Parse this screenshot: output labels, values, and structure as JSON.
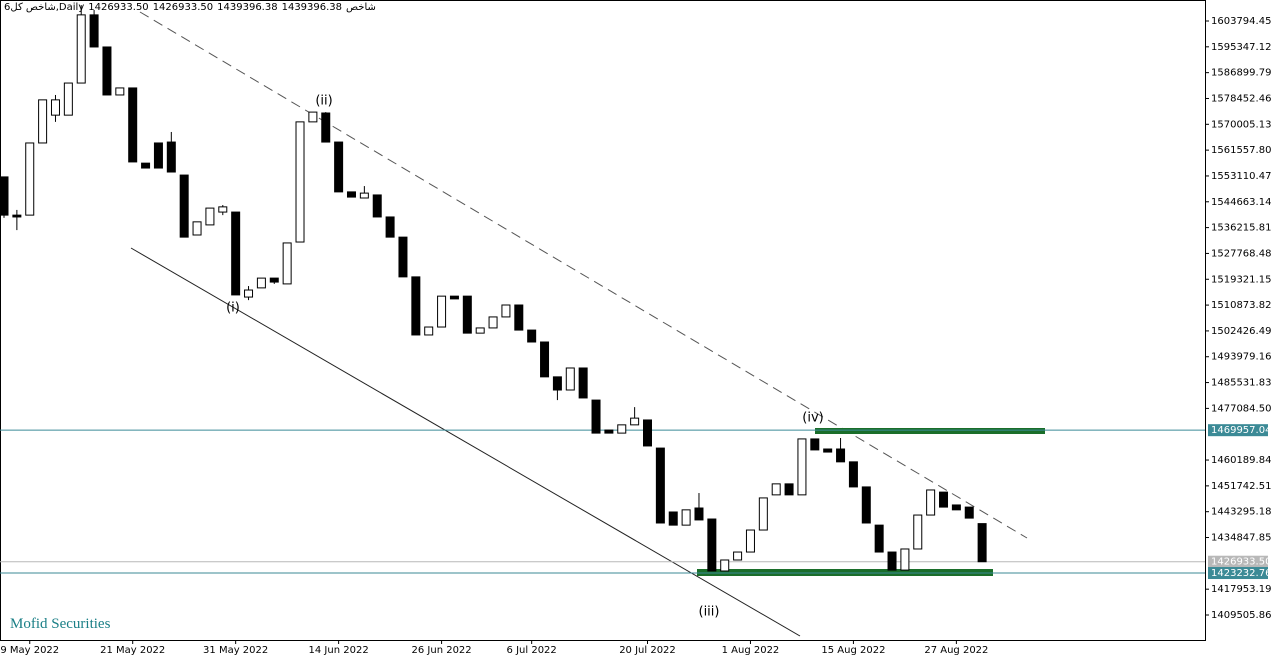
{
  "header": {
    "symbol": "شاخص کل6,Daily",
    "ohlc": [
      "1426933.50",
      "1426933.50",
      "1439396.38",
      "1439396.38"
    ],
    "indicator": "شاخص"
  },
  "brand": "Mofid Securities",
  "chart_data": {
    "type": "candlestick",
    "categories": [
      null,
      null,
      "9 May 2022",
      null,
      null,
      null,
      null,
      null,
      null,
      null,
      "21 May 2022",
      null,
      null,
      null,
      null,
      null,
      null,
      null,
      "31 May 2022",
      null,
      null,
      null,
      null,
      null,
      null,
      null,
      "14 Jun 2022",
      null,
      null,
      null,
      null,
      null,
      null,
      null,
      "26 Jun 2022",
      null,
      null,
      null,
      null,
      null,
      null,
      "6 Jul 2022",
      null,
      null,
      null,
      null,
      null,
      null,
      null,
      null,
      "20 Jul 2022",
      null,
      null,
      null,
      null,
      null,
      null,
      null,
      "1 Aug 2022",
      null,
      null,
      null,
      null,
      null,
      null,
      null,
      "15 Aug 2022",
      null,
      null,
      null,
      null,
      null,
      null,
      null,
      "27 Aug 2022",
      null,
      null
    ],
    "open": [
      1552800,
      1540300,
      1540300,
      1563900,
      1573000,
      1573000,
      1583500,
      1605800,
      1595300,
      1579600,
      1581900,
      1557300,
      1563900,
      1564200,
      1553400,
      1533800,
      1537100,
      1541300,
      1541300,
      1513500,
      1516500,
      1519700,
      1517800,
      1531500,
      1570800,
      1573700,
      1564200,
      1547900,
      1545900,
      1546900,
      1539700,
      1533100,
      1520100,
      1501100,
      1503700,
      1513800,
      1513800,
      1501700,
      1503400,
      1507000,
      1510900,
      1502700,
      1498800,
      1487400,
      1483100,
      1490300,
      1479800,
      1470000,
      1469000,
      1471700,
      1473300,
      1464100,
      1443200,
      1438900,
      1444500,
      1440900,
      1423900,
      1427500,
      1430100,
      1437300,
      1448800,
      1452400,
      1448800,
      1467100,
      1463800,
      1463800,
      1459600,
      1451400,
      1438900,
      1430100,
      1424200,
      1431100,
      1442200,
      1449700,
      1445500,
      1444800,
      1439396.38
    ],
    "high": [
      1552800,
      1542000,
      1563900,
      1578000,
      1579600,
      1583500,
      1609000,
      1607400,
      1595300,
      1581900,
      1581900,
      1557300,
      1563900,
      1567500,
      1553400,
      1538100,
      1542600,
      1543600,
      1541300,
      1517100,
      1519700,
      1519700,
      1531200,
      1570800,
      1574000,
      1574000,
      1564200,
      1547900,
      1549800,
      1546900,
      1539700,
      1533100,
      1520100,
      1503700,
      1513800,
      1513800,
      1513800,
      1503400,
      1507000,
      1510900,
      1510900,
      1502700,
      1498800,
      1487400,
      1490300,
      1490300,
      1479800,
      1470000,
      1471700,
      1477500,
      1473300,
      1464100,
      1443200,
      1443900,
      1449400,
      1440900,
      1427500,
      1430100,
      1437300,
      1447800,
      1452400,
      1452400,
      1467100,
      1467100,
      1463800,
      1467400,
      1459600,
      1451400,
      1438900,
      1430100,
      1431100,
      1442200,
      1450400,
      1449700,
      1445500,
      1444800,
      1439396.38
    ],
    "low": [
      1539400,
      1535400,
      1540300,
      1563900,
      1570800,
      1573000,
      1583500,
      1595300,
      1579600,
      1579600,
      1557700,
      1555700,
      1555700,
      1554400,
      1533100,
      1533800,
      1537100,
      1540300,
      1514200,
      1512500,
      1516500,
      1517800,
      1517800,
      1531500,
      1570800,
      1564200,
      1547900,
      1546200,
      1545900,
      1539700,
      1533100,
      1520100,
      1501100,
      1501100,
      1503700,
      1512900,
      1501700,
      1501700,
      1503400,
      1507000,
      1502700,
      1498800,
      1487400,
      1479800,
      1483100,
      1480500,
      1469000,
      1469000,
      1469000,
      1471700,
      1464800,
      1439600,
      1438900,
      1438900,
      1440600,
      1423900,
      1423900,
      1427500,
      1430100,
      1437300,
      1448800,
      1448800,
      1448800,
      1463500,
      1462800,
      1459600,
      1451400,
      1439600,
      1430100,
      1424200,
      1424200,
      1431100,
      1442200,
      1444800,
      1443900,
      1441200,
      1426933.5
    ],
    "close": [
      1540300,
      1539700,
      1563900,
      1578000,
      1578000,
      1583500,
      1605800,
      1595300,
      1579600,
      1581900,
      1557700,
      1555700,
      1555700,
      1554400,
      1533100,
      1538100,
      1542600,
      1543000,
      1514200,
      1515800,
      1519700,
      1518400,
      1531200,
      1570800,
      1574000,
      1564200,
      1547900,
      1546200,
      1547500,
      1539700,
      1533100,
      1520100,
      1501100,
      1503700,
      1513800,
      1512900,
      1501700,
      1503400,
      1507000,
      1510900,
      1502700,
      1498800,
      1487400,
      1483100,
      1490300,
      1480500,
      1469000,
      1469000,
      1471700,
      1473900,
      1464800,
      1439600,
      1438900,
      1443900,
      1440600,
      1423900,
      1427500,
      1430100,
      1437300,
      1447800,
      1452400,
      1448800,
      1467100,
      1463500,
      1462800,
      1459600,
      1451400,
      1439600,
      1430100,
      1424200,
      1431100,
      1442200,
      1450400,
      1444800,
      1443900,
      1441200,
      1426933.5
    ],
    "up_color": "#ffffff",
    "down_color": "#000000",
    "ylim": [
      1401329,
      1610663
    ],
    "yticks": [
      1603794.45,
      1595347.12,
      1586899.79,
      1578452.46,
      1570005.13,
      {
        "value": 1561557.8,
        "label": "1561557.80"
      },
      1553110.47,
      1544663.14,
      1536215.81,
      1527768.48,
      1519321.15,
      1510873.82,
      1502426.49,
      1493979.16,
      1485531.83,
      {
        "value": 1477084.5,
        "label": "1477084.50"
      },
      1460189.84,
      1451742.51,
      1443295.18,
      1434847.85,
      1417953.19,
      1409505.86
    ],
    "levels": [
      1469957.04,
      {
        "value": 1426933.5,
        "label": "1426933.50"
      },
      1423232.76
    ],
    "level_colors": [
      "#3b8a96",
      "#b8b8b8",
      "#3b8a96"
    ],
    "annotations": [
      "(i)",
      "(ii)",
      "(iii)",
      "(iv)"
    ]
  }
}
